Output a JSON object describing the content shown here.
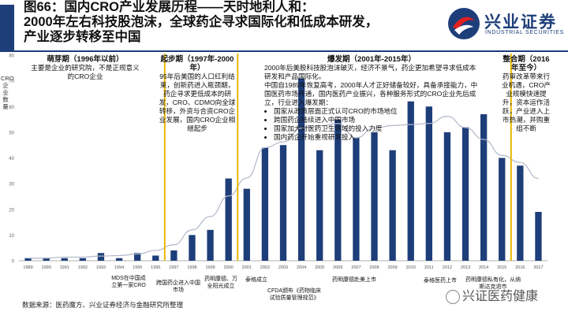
{
  "header": {
    "title_line1": "图66：国内CRO产业发展历程——天时地利人和：",
    "title_line2": "2000年左右科技股泡沫，全球药企寻求国际化和低成本研发，",
    "title_line3": "产业逐步转移至中国"
  },
  "logo": {
    "cn": "兴业证券",
    "en": "INDUSTRIAL SECURITIES"
  },
  "ylabel": "CRO企业数量",
  "phases": [
    {
      "title": "萌芽期（1996年以前）",
      "text": "主要是企业的研究院，不是正规意义的CRO企业"
    },
    {
      "title": "起步期（1997年-2000年）",
      "text": "95年后美国的人口红利结束，创新药进入瓶颈期，药企寻求更低成本的研发，CRO、CDMO向全球转移，外资与合资CRO企业发展，国内CRO企业相继起步"
    },
    {
      "title": "爆发期（2001年-2015年）",
      "text1": "2000年后美股科技股泡沫破灭，经济不景气，药企更加希望寻求低成本研发和产品国际化。",
      "text2": "中国自1989年恢复高考，2000年人才正好储备较好，具备承接能力，中国医药市场开通，国内医药产业振兴，各种服务形式的CRO企业先后成立，行业进入爆发期：",
      "bullets": [
        "国家从政策层面正式认可CRO的市场地位",
        "跨国药企陆续进入中国市场",
        "国家加大对医药卫生领域的投入力度",
        "国内药企开始重视研发投入"
      ]
    },
    {
      "title": "整合期（2016年至今）",
      "text": "药审改革带来行业机遇，CRO产业规模快速提升，资本运作活跃，产业进入上市热潮，并购重组不断"
    }
  ],
  "events": [
    "MDS在中国成立第一家CRO",
    "跨国药企进入中国市场",
    "药明康德、万全阳光成立",
    "泰格成立",
    "CFDA颁布《药物临床试验质量管理规范》",
    "药明康德赴美上市",
    "泰格医药上市",
    "药明康德私有化，从纳斯达克退市"
  ],
  "source": "数据来源：医药魔方、兴业证券经济与金融研究所整理",
  "watermark": "兴证医药健康",
  "chart_data": {
    "type": "bar",
    "ylim": [
      0,
      80
    ],
    "yticks": [
      0,
      10,
      20,
      30,
      40,
      50,
      60,
      70,
      80
    ],
    "categories": [
      "1989",
      "1990",
      "1991",
      "1992",
      "1993",
      "1994",
      "1995",
      "1996",
      "1997",
      "1998",
      "1999",
      "2000",
      "2001",
      "2002",
      "2003",
      "2004",
      "2005",
      "2006",
      "2007",
      "2008",
      "2009",
      "2010",
      "2011",
      "2012",
      "2013",
      "2014",
      "2015",
      "2016",
      "2017"
    ],
    "values": [
      1,
      1,
      1,
      1,
      3,
      1,
      3,
      2,
      4,
      10,
      12,
      32,
      28,
      44,
      45,
      71,
      43,
      55,
      48,
      50,
      43,
      62,
      60,
      50,
      52,
      57,
      40,
      37,
      19
    ],
    "bar_color": "#1e3e7a",
    "trend_line_color": "#b0b8c8",
    "dividers_after": [
      "1996",
      "2000",
      "2015"
    ],
    "divider_color": "#e8b800"
  }
}
